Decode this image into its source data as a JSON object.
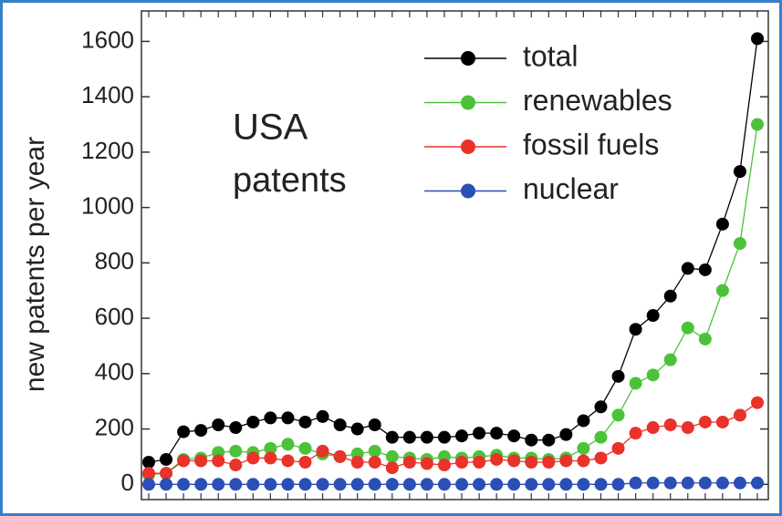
{
  "chart_data": {
    "type": "line",
    "ylabel": "new patents per year",
    "annotations": [
      "USA",
      "patents"
    ],
    "categories": [
      null,
      null,
      null,
      null,
      null,
      null,
      null,
      null,
      null,
      null,
      null,
      null,
      null,
      null,
      null,
      null,
      null,
      null,
      null,
      null,
      null,
      null,
      null,
      null,
      null,
      null,
      null,
      null,
      null,
      null,
      null,
      null,
      null,
      null,
      null,
      null
    ],
    "ylim": [
      -55,
      1710
    ],
    "yticks": [
      0,
      200,
      400,
      600,
      800,
      1000,
      1200,
      1400,
      1600
    ],
    "legend": "upper center",
    "series": [
      {
        "name": "total",
        "color": "#000000",
        "values": [
          80,
          90,
          190,
          195,
          215,
          205,
          225,
          240,
          240,
          225,
          245,
          215,
          200,
          215,
          170,
          170,
          170,
          170,
          175,
          185,
          185,
          175,
          160,
          160,
          180,
          230,
          280,
          390,
          560,
          610,
          680,
          780,
          775,
          940,
          1130,
          1610
        ]
      },
      {
        "name": "renewables",
        "color": "#4cc23a",
        "values": [
          35,
          40,
          90,
          95,
          115,
          120,
          115,
          130,
          145,
          130,
          110,
          100,
          110,
          120,
          100,
          95,
          90,
          100,
          95,
          100,
          105,
          95,
          95,
          90,
          95,
          130,
          170,
          250,
          365,
          395,
          450,
          565,
          525,
          700,
          870,
          1300
        ]
      },
      {
        "name": "fossil fuels",
        "color": "#e8322a",
        "values": [
          40,
          40,
          85,
          85,
          85,
          70,
          95,
          95,
          85,
          80,
          120,
          100,
          80,
          80,
          60,
          80,
          75,
          70,
          80,
          80,
          90,
          85,
          80,
          80,
          85,
          85,
          95,
          130,
          185,
          205,
          215,
          205,
          225,
          225,
          250,
          295
        ]
      },
      {
        "name": "nuclear",
        "color": "#2a4fb5",
        "values": [
          0,
          0,
          0,
          0,
          0,
          0,
          0,
          0,
          0,
          0,
          0,
          0,
          0,
          0,
          0,
          0,
          0,
          0,
          0,
          0,
          0,
          0,
          0,
          0,
          0,
          0,
          0,
          0,
          5,
          5,
          5,
          5,
          5,
          5,
          5,
          5
        ]
      }
    ]
  }
}
